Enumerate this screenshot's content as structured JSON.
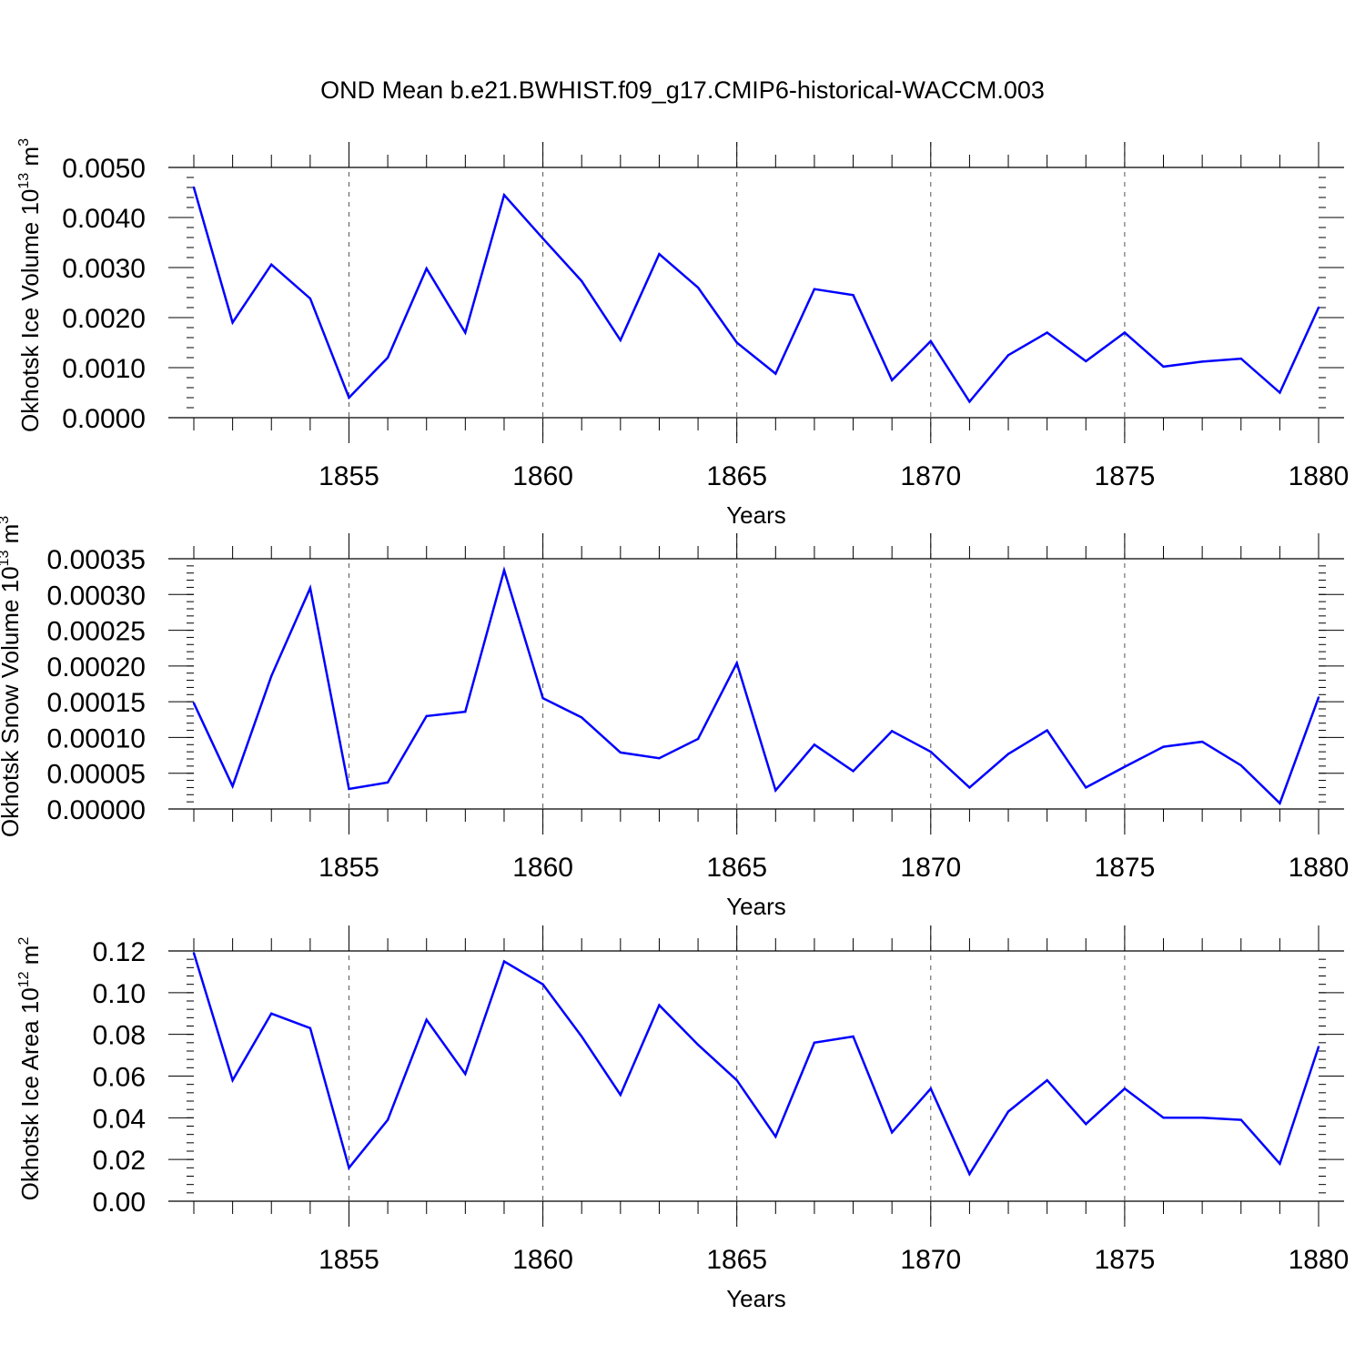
{
  "title": "OND Mean b.e21.BWHIST.f09_g17.CMIP6-historical-WACCM.003",
  "chart_data": [
    {
      "type": "line",
      "ylabel": "Okhotsk Ice Volume 10",
      "ylabel_exp": "13",
      "ylabel_unit": " m",
      "ylabel_unit_exp": "3",
      "xlabel": "Years",
      "xlim": [
        1851,
        1880
      ],
      "ylim": [
        0,
        0.005
      ],
      "x_ticks": [
        1855,
        1860,
        1865,
        1870,
        1875,
        1880
      ],
      "x_tick_labels": [
        "1855",
        "1860",
        "1865",
        "1870",
        "1875",
        "1880"
      ],
      "y_ticks": [
        0,
        0.001,
        0.002,
        0.003,
        0.004,
        0.005
      ],
      "y_tick_labels": [
        "0.0000",
        "0.0010",
        "0.0020",
        "0.0030",
        "0.0040",
        "0.0050"
      ],
      "y_minor_step": 0.0002,
      "x_minor_step": 1,
      "grid_x": [
        1855,
        1860,
        1865,
        1870,
        1875
      ],
      "series_color": "#0000ff",
      "x": [
        1851,
        1852,
        1853,
        1854,
        1855,
        1856,
        1857,
        1858,
        1859,
        1860,
        1861,
        1862,
        1863,
        1864,
        1865,
        1866,
        1867,
        1868,
        1869,
        1870,
        1871,
        1872,
        1873,
        1874,
        1875,
        1876,
        1877,
        1878,
        1879,
        1880
      ],
      "values": [
        0.0046,
        0.0019,
        0.00306,
        0.00238,
        0.0004,
        0.0012,
        0.00298,
        0.0017,
        0.00445,
        0.00358,
        0.00273,
        0.00155,
        0.00327,
        0.0026,
        0.0015,
        0.00088,
        0.00257,
        0.00245,
        0.00075,
        0.00153,
        0.00032,
        0.00125,
        0.0017,
        0.00113,
        0.0017,
        0.00102,
        0.00112,
        0.00118,
        0.0005,
        0.0022
      ]
    },
    {
      "type": "line",
      "ylabel": "Okhotsk Snow Volume 10",
      "ylabel_exp": "13",
      "ylabel_unit": " m",
      "ylabel_unit_exp": "3",
      "xlabel": "Years",
      "xlim": [
        1851,
        1880
      ],
      "ylim": [
        0,
        0.00035
      ],
      "x_ticks": [
        1855,
        1860,
        1865,
        1870,
        1875,
        1880
      ],
      "x_tick_labels": [
        "1855",
        "1860",
        "1865",
        "1870",
        "1875",
        "1880"
      ],
      "y_ticks": [
        0,
        5e-05,
        0.0001,
        0.00015,
        0.0002,
        0.00025,
        0.0003,
        0.00035
      ],
      "y_tick_labels": [
        "0.00000",
        "0.00005",
        "0.00010",
        "0.00015",
        "0.00020",
        "0.00025",
        "0.00030",
        "0.00035"
      ],
      "y_minor_step": 1e-05,
      "x_minor_step": 1,
      "grid_x": [
        1855,
        1860,
        1865,
        1870,
        1875
      ],
      "series_color": "#0000ff",
      "x": [
        1851,
        1852,
        1853,
        1854,
        1855,
        1856,
        1857,
        1858,
        1859,
        1860,
        1861,
        1862,
        1863,
        1864,
        1865,
        1866,
        1867,
        1868,
        1869,
        1870,
        1871,
        1872,
        1873,
        1874,
        1875,
        1876,
        1877,
        1878,
        1879,
        1880
      ],
      "values": [
        0.000148,
        3.2e-05,
        0.000186,
        0.000309,
        2.8e-05,
        3.7e-05,
        0.00013,
        0.000136,
        0.000334,
        0.000155,
        0.000128,
        7.9e-05,
        7.1e-05,
        9.8e-05,
        0.000204,
        2.6e-05,
        9e-05,
        5.3e-05,
        0.000109,
        8e-05,
        3e-05,
        7.7e-05,
        0.00011,
        3e-05,
        5.9e-05,
        8.7e-05,
        9.4e-05,
        6.1e-05,
        8e-06,
        0.000156
      ]
    },
    {
      "type": "line",
      "ylabel": "Okhotsk Ice Area 10",
      "ylabel_exp": "12",
      "ylabel_unit": " m",
      "ylabel_unit_exp": "2",
      "xlabel": "Years",
      "xlim": [
        1851,
        1880
      ],
      "ylim": [
        0,
        0.12
      ],
      "x_ticks": [
        1855,
        1860,
        1865,
        1870,
        1875,
        1880
      ],
      "x_tick_labels": [
        "1855",
        "1860",
        "1865",
        "1870",
        "1875",
        "1880"
      ],
      "y_ticks": [
        0,
        0.02,
        0.04,
        0.06,
        0.08,
        0.1,
        0.12
      ],
      "y_tick_labels": [
        "0.00",
        "0.02",
        "0.04",
        "0.06",
        "0.08",
        "0.10",
        "0.12"
      ],
      "y_minor_step": 0.004,
      "x_minor_step": 1,
      "grid_x": [
        1855,
        1860,
        1865,
        1870,
        1875
      ],
      "series_color": "#0000ff",
      "x": [
        1851,
        1852,
        1853,
        1854,
        1855,
        1856,
        1857,
        1858,
        1859,
        1860,
        1861,
        1862,
        1863,
        1864,
        1865,
        1866,
        1867,
        1868,
        1869,
        1870,
        1871,
        1872,
        1873,
        1874,
        1875,
        1876,
        1877,
        1878,
        1879,
        1880
      ],
      "values": [
        0.119,
        0.058,
        0.09,
        0.083,
        0.016,
        0.039,
        0.087,
        0.061,
        0.115,
        0.104,
        0.079,
        0.051,
        0.094,
        0.075,
        0.058,
        0.031,
        0.076,
        0.079,
        0.033,
        0.054,
        0.013,
        0.043,
        0.058,
        0.037,
        0.054,
        0.04,
        0.04,
        0.039,
        0.018,
        0.074
      ]
    }
  ]
}
